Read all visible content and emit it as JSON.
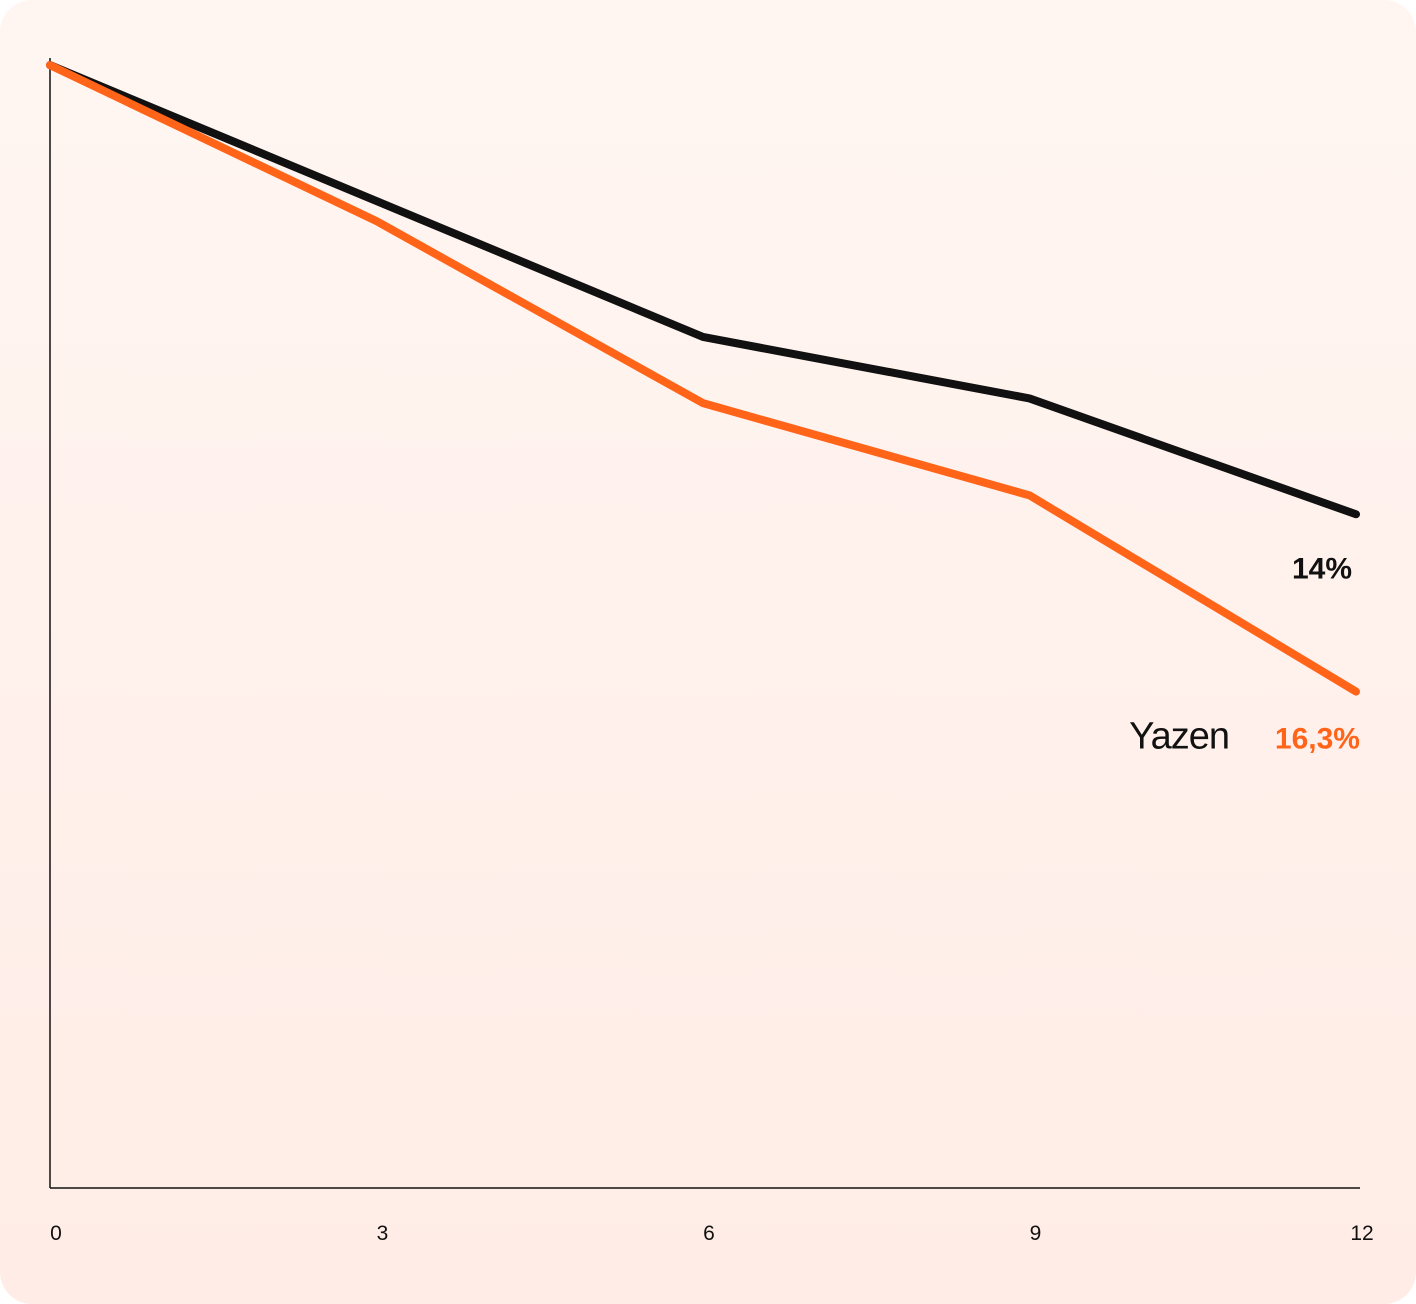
{
  "chart_data": {
    "type": "line",
    "x": [
      0,
      3,
      6,
      9,
      12
    ],
    "xlim": [
      0,
      12
    ],
    "ylim": [
      0,
      100
    ],
    "x_tick_labels": [
      "0",
      "3",
      "6",
      "9",
      "12"
    ],
    "grid": false,
    "series": [
      {
        "color": "#111111",
        "values": [
          95,
          83.5,
          72,
          66.8,
          57
        ],
        "end_label": "14%"
      },
      {
        "name": "Yazen",
        "color": "#ff6419",
        "values": [
          95,
          81.8,
          66.4,
          58.6,
          42
        ]
      }
    ],
    "annotations": [
      {
        "text": "16,3%",
        "series": 1,
        "color": "#ff6419"
      }
    ],
    "logo": "Yazen"
  }
}
